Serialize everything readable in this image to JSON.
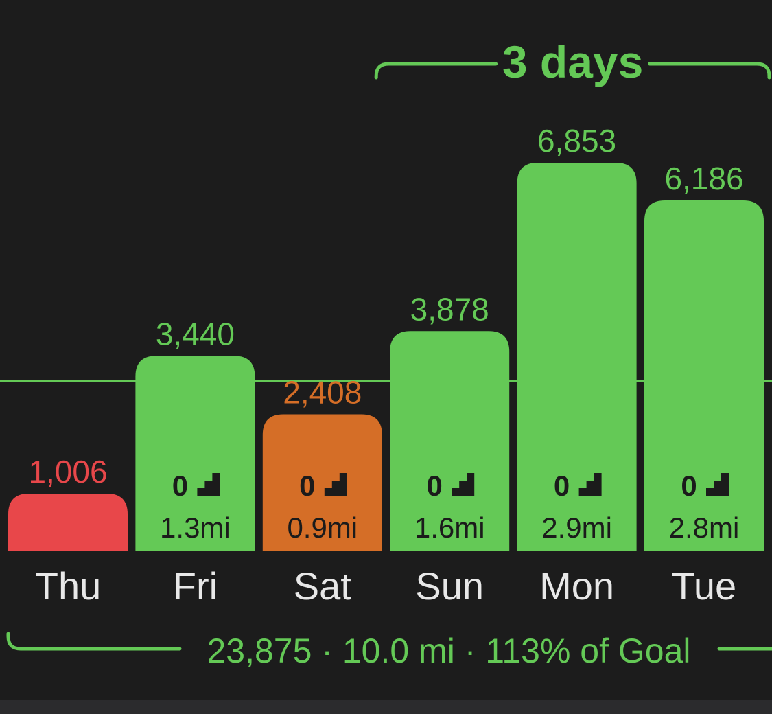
{
  "colors": {
    "background": "#1c1c1c",
    "met": "#64c956",
    "under": "#e8474a",
    "partial": "#d56e27",
    "inner_text": "#1b1b1b",
    "day_text": "#e8e8e8",
    "goal_line": "#64c956"
  },
  "streak": {
    "label": "3 days",
    "span": [
      "Sun",
      "Tue"
    ]
  },
  "summary": {
    "text": "23,875 · 10.0 mi · 113% of Goal"
  },
  "stair_icon": "stairs-icon",
  "chart_data": {
    "type": "bar",
    "categories": [
      "Thu",
      "Fri",
      "Sat",
      "Sun",
      "Mon",
      "Tue"
    ],
    "values": [
      1006,
      3440,
      2408,
      3878,
      6853,
      6186
    ],
    "value_labels": [
      "1,006",
      "3,440",
      "2,408",
      "3,878",
      "6,853",
      "6,186"
    ],
    "status": [
      "under",
      "met",
      "partial",
      "met",
      "met",
      "met"
    ],
    "flights": [
      "",
      "0",
      "0",
      "0",
      "0",
      "0"
    ],
    "distance": [
      "",
      "1.3mi",
      "0.9mi",
      "1.6mi",
      "2.9mi",
      "2.8mi"
    ],
    "goal": 3000,
    "grid": false,
    "xlabel": "",
    "ylabel": ""
  }
}
